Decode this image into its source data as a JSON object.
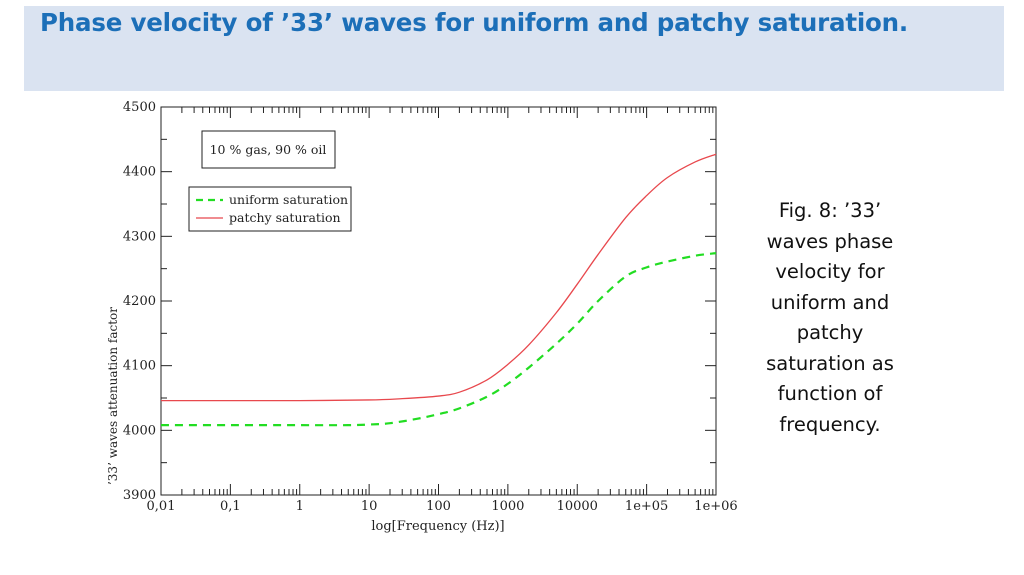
{
  "slide": {
    "title": "Phase velocity of ’33’ waves for uniform and patchy saturation.",
    "caption": "Fig. 8: ’33’ waves phase velocity for uniform and patchy saturation as function of frequency.",
    "title_band_color": "#dae3f1",
    "title_color": "#1c6fb8"
  },
  "chart_data": {
    "type": "line",
    "title": "",
    "xlabel": "log[Frequency (Hz)]",
    "ylabel": "’33’ waves attenuation factor",
    "x_scale": "log",
    "xlim": [
      0.01,
      1000000
    ],
    "ylim": [
      3900,
      4500
    ],
    "x_tick_values": [
      0.01,
      0.1,
      1,
      10,
      100,
      1000,
      10000,
      100000,
      1000000
    ],
    "x_tick_labels": [
      "0,01",
      "0,1",
      "1",
      "10",
      "100",
      "1000",
      "10000",
      "1e+05",
      "1e+06"
    ],
    "y_tick_values": [
      3900,
      4000,
      4100,
      4200,
      4300,
      4400,
      4500
    ],
    "y_tick_labels": [
      "3900",
      "4000",
      "4100",
      "4200",
      "4300",
      "4400",
      "4500"
    ],
    "grid": false,
    "legend_placement": "top-left",
    "annotation": "10 % gas, 90 % oil",
    "series": [
      {
        "name": "uniform saturation",
        "color": "#22dd22",
        "style": "dashed",
        "x": [
          0.01,
          0.1,
          1,
          5,
          10,
          20,
          50,
          100,
          200,
          500,
          1000,
          2000,
          5000,
          10000,
          20000,
          50000,
          100000,
          200000,
          500000,
          1000000
        ],
        "y": [
          4008,
          4008,
          4008,
          4008,
          4009,
          4011,
          4018,
          4025,
          4034,
          4052,
          4072,
          4097,
          4134,
          4165,
          4200,
          4238,
          4252,
          4261,
          4270,
          4274
        ]
      },
      {
        "name": "patchy saturation",
        "color": "#e8484d",
        "style": "solid",
        "x": [
          0.01,
          0.1,
          1,
          10,
          30,
          100,
          200,
          500,
          1000,
          2000,
          5000,
          10000,
          20000,
          50000,
          100000,
          200000,
          500000,
          1000000
        ],
        "y": [
          4046,
          4046,
          4046,
          4047,
          4049,
          4053,
          4059,
          4078,
          4102,
          4132,
          4182,
          4226,
          4272,
          4329,
          4363,
          4391,
          4415,
          4427
        ]
      }
    ]
  }
}
